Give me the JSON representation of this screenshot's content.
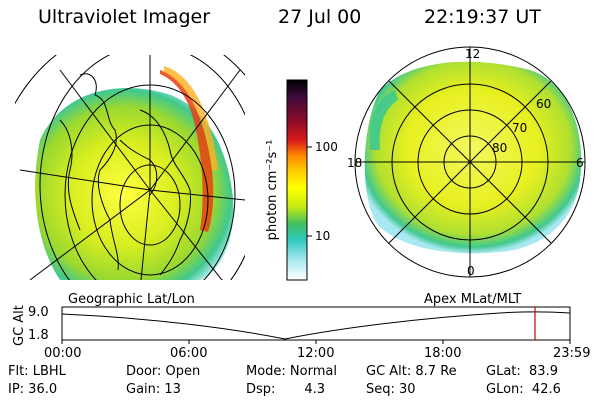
{
  "header": {
    "title": "Ultraviolet Imager",
    "date": "27 Jul 00",
    "time": "22:19:37 UT"
  },
  "colorbar": {
    "unit_label": "photon cm⁻²s⁻¹",
    "ticks": [
      "100",
      "10"
    ],
    "colors": [
      "#000000",
      "#3a0a3a",
      "#7a0a2a",
      "#c0102a",
      "#e83a1a",
      "#ff8a00",
      "#ffd000",
      "#ffff00",
      "#e8f000",
      "#a8e000",
      "#40c060",
      "#30c8c0",
      "#a0e8f0",
      "#ffffff"
    ]
  },
  "left_map": {
    "label": "Geographic Lat/Lon"
  },
  "right_map": {
    "label": "Apex MLat/MLT",
    "mlt_labels": {
      "top": "12",
      "bottom": "0",
      "left": "18",
      "right": "6"
    },
    "mlat_labels": [
      "60",
      "70",
      "80"
    ]
  },
  "altitude_plot": {
    "ylabel": "GC Alt",
    "yticks": [
      "9.0",
      "1.8"
    ],
    "xticks": [
      "00:00",
      "06:00",
      "12:00",
      "18:00",
      "23:59"
    ],
    "marker_color": "#d00000"
  },
  "footer": {
    "filter": "Flt: LBHL",
    "ip": "IP: 36.0",
    "door": "Door: Open",
    "gain": "Gain: 13",
    "mode": "Mode: Normal",
    "dsp": "Dsp:       4.3",
    "gc_alt": "GC Alt: 8.7 Re",
    "seq": "Seq: 30",
    "glat": "GLat:  83.9",
    "glon": "GLon:  42.6"
  }
}
